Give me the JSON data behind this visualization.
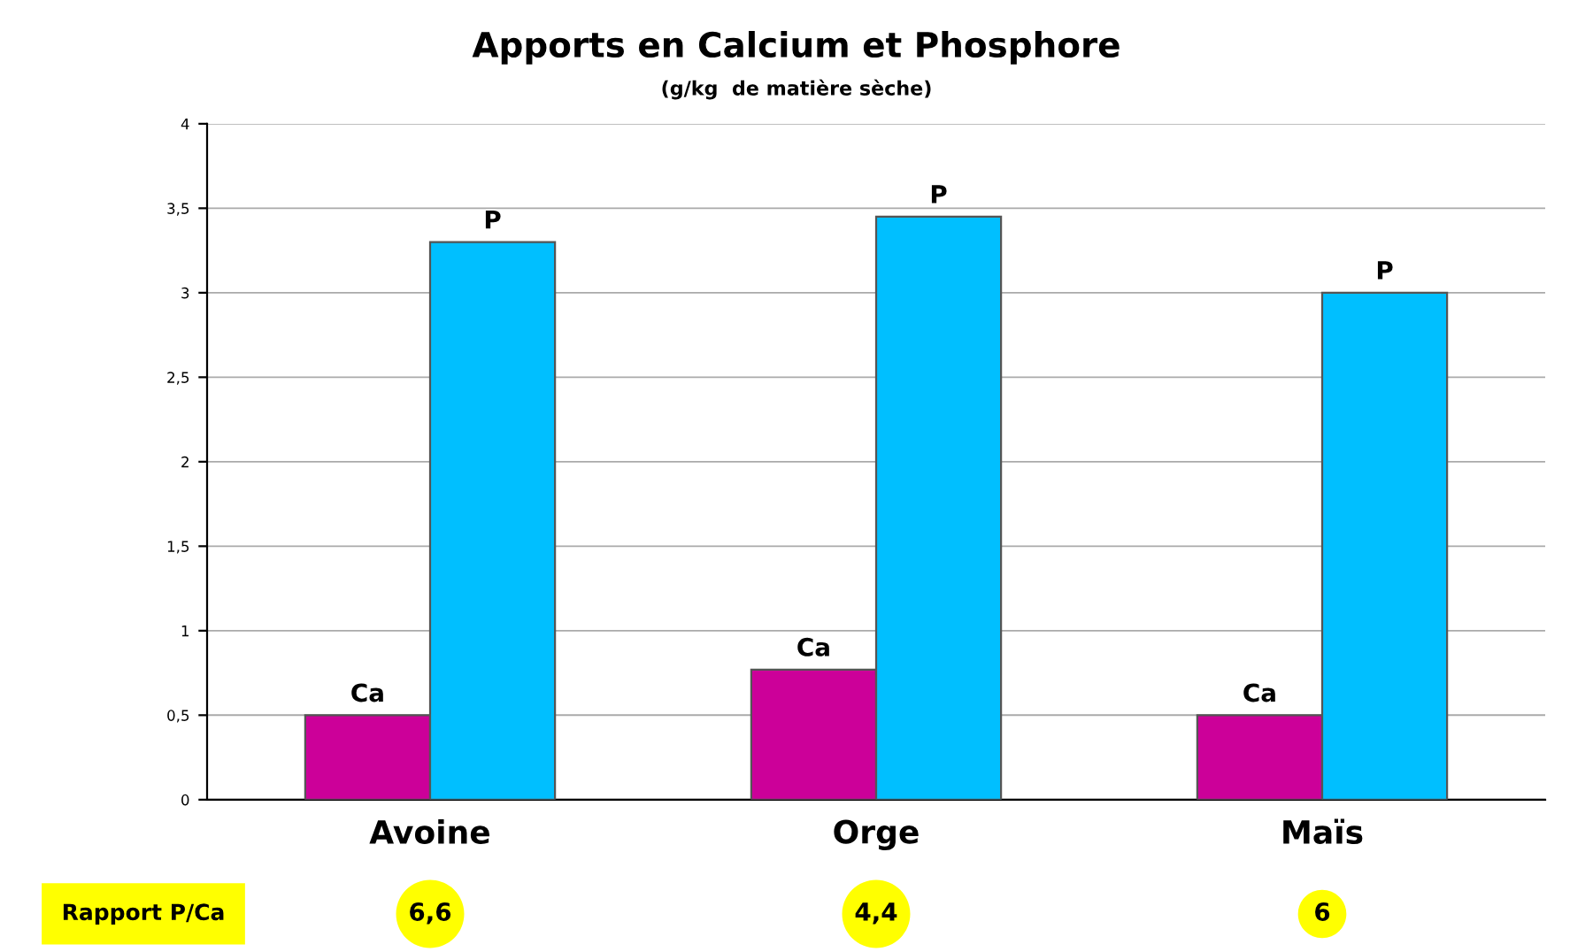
{
  "chart_data": {
    "type": "bar",
    "title": "Apports en Calcium et Phosphore",
    "subtitle": "(g/kg  de matière sèche)",
    "categories": [
      "Avoine",
      "Orge",
      "Maïs"
    ],
    "series": [
      {
        "name": "Ca",
        "color": "#cc0099",
        "values": [
          0.5,
          0.77,
          0.5
        ]
      },
      {
        "name": "P",
        "color": "#00bfff",
        "values": [
          3.3,
          3.45,
          3.0
        ]
      }
    ],
    "ylim": [
      0,
      4
    ],
    "yticks": [
      0,
      {
        "value": 0.5,
        "label": "0,5"
      },
      1,
      {
        "value": 1.5,
        "label": "1,5"
      },
      2,
      {
        "value": 2.5,
        "label": "2,5"
      },
      3,
      {
        "value": 3.5,
        "label": "3,5"
      },
      4
    ],
    "grid": "y",
    "legend": false,
    "annotations": [
      "Rapport P/Ca",
      "6,6",
      "4,4",
      "6"
    ]
  }
}
